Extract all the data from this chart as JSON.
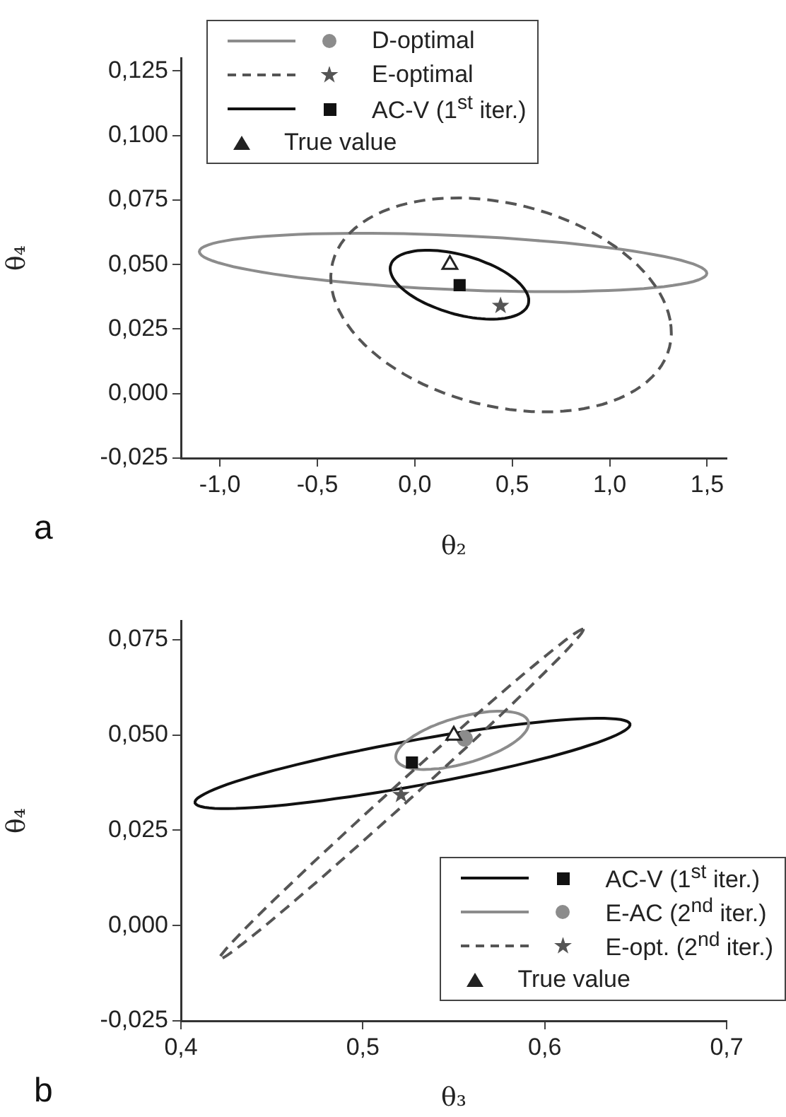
{
  "chart_data": [
    {
      "type": "scatter",
      "xlabel": "θ₂",
      "ylabel": "θ₄",
      "xlim": [
        -1.2,
        1.6
      ],
      "ylim": [
        -0.025,
        0.13
      ],
      "xticks": [
        {
          "value": -1,
          "label": "-1,0"
        },
        {
          "value": -0.5,
          "label": "-0,5"
        },
        {
          "value": 0,
          "label": "0,0"
        },
        {
          "value": 0.5,
          "label": "0,5"
        },
        {
          "value": 1,
          "label": "1,0"
        },
        {
          "value": 1.5,
          "label": "1,5"
        }
      ],
      "yticks": [
        {
          "value": -0.025,
          "label": "-0,025"
        },
        {
          "value": 0,
          "label": "0,000"
        },
        {
          "value": 0.025,
          "label": "0,025"
        },
        {
          "value": 0.05,
          "label": "0,050"
        },
        {
          "value": 0.075,
          "label": "0,075"
        },
        {
          "value": 0.1,
          "label": "0,100"
        },
        {
          "value": 0.125,
          "label": "0,125"
        }
      ],
      "grid": false,
      "legend": "top",
      "annotations": [
        "a"
      ],
      "series": [
        {
          "name": "D-optimal",
          "color": "#8c8c8c",
          "marker": "circle",
          "x": [
            null
          ],
          "values": [
            null
          ]
        },
        {
          "name": "E-optimal",
          "color": "#555555",
          "marker": "star",
          "x": [
            0.44
          ],
          "values": [
            0.034
          ]
        },
        {
          "name": "AC-V (1$^{st}$ iter.)",
          "color": "#111111",
          "marker": "square",
          "x": [
            0.23
          ],
          "values": [
            0.042
          ]
        },
        {
          "name": "True value",
          "color": "#222222",
          "marker": "triangle",
          "x": [
            0.18
          ],
          "values": [
            0.05
          ]
        }
      ]
    },
    {
      "type": "scatter",
      "xlabel": "θ₃",
      "ylabel": "θ₄",
      "xlim": [
        0.4,
        0.7
      ],
      "ylim": [
        -0.025,
        0.08
      ],
      "xticks": [
        {
          "value": 0.4,
          "label": "0,4"
        },
        {
          "value": 0.5,
          "label": "0,5"
        },
        {
          "value": 0.6,
          "label": "0,6"
        },
        {
          "value": 0.7,
          "label": "0,7"
        }
      ],
      "yticks": [
        {
          "value": -0.025,
          "label": "-0,025"
        },
        {
          "value": 0,
          "label": "0,000"
        },
        {
          "value": 0.025,
          "label": "0,025"
        },
        {
          "value": 0.05,
          "label": "0,050"
        },
        {
          "value": 0.075,
          "label": "0,075"
        }
      ],
      "grid": false,
      "legend": "bottom right",
      "annotations": [
        "b"
      ],
      "series": [
        {
          "name": "AC-V (1$^{st}$ iter.)",
          "color": "#111111",
          "marker": "square",
          "x": [
            0.527
          ],
          "values": [
            0.0428
          ]
        },
        {
          "name": "E-AC (2$^{nd}$ iter.)",
          "color": "#8c8c8c",
          "marker": "circle",
          "x": [
            0.556
          ],
          "values": [
            0.0491
          ]
        },
        {
          "name": "E-opt. (2$^{nd}$ iter.)",
          "color": "#555555",
          "marker": "star",
          "x": [
            0.521
          ],
          "values": [
            0.0343
          ]
        },
        {
          "name": "True value",
          "color": "#222222",
          "marker": "triangle",
          "x": [
            0.55
          ],
          "values": [
            0.0499
          ]
        }
      ]
    }
  ]
}
